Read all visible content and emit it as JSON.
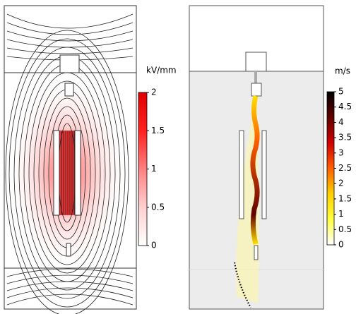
{
  "chart_data": [
    {
      "type": "heatmap",
      "colorbar_label": "kV/mm",
      "zlim": [
        0,
        2
      ],
      "zticks": [
        0,
        0.5,
        1,
        1.5,
        2
      ],
      "colormap": [
        "#ffffff",
        "#ffd0d0",
        "#ff8080",
        "#ff2020",
        "#e00000"
      ]
    },
    {
      "type": "heatmap",
      "colorbar_label": "m/s",
      "zlim": [
        0,
        5
      ],
      "zticks": [
        0,
        0.5,
        1,
        1.5,
        2,
        2.5,
        3,
        3.5,
        4,
        4.5,
        5
      ],
      "colormap": [
        "#ffffff",
        "#ffff40",
        "#ffd000",
        "#ff6000",
        "#d00000",
        "#600000",
        "#000000"
      ]
    }
  ]
}
